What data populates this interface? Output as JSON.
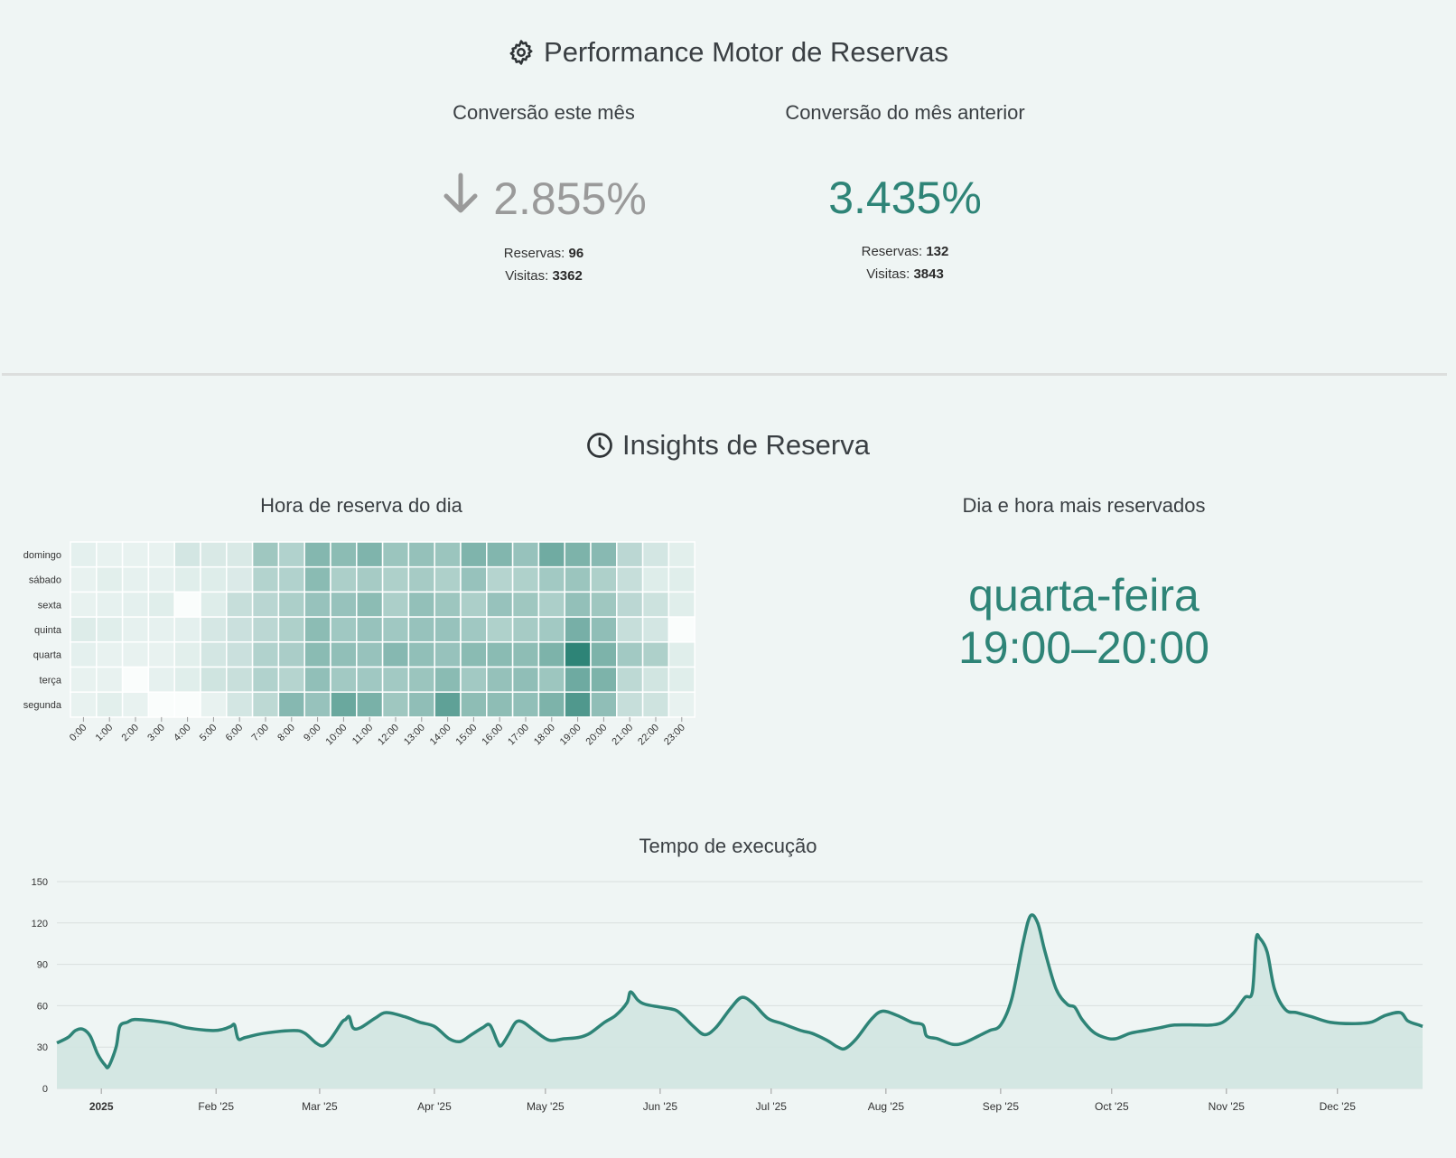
{
  "performance": {
    "title": "Performance Motor de Reservas",
    "icon": "gear-icon",
    "current": {
      "label": "Conversão este mês",
      "value": "2.855%",
      "trend_icon": "arrow-down-icon",
      "reservas_label": "Reservas:",
      "reservas": "96",
      "visitas_label": "Visitas:",
      "visitas": "3362",
      "color": "#9a9a9a"
    },
    "previous": {
      "label": "Conversão do mês anterior",
      "value": "3.435%",
      "reservas_label": "Reservas:",
      "reservas": "132",
      "visitas_label": "Visitas:",
      "visitas": "3843",
      "color": "#2e8477"
    }
  },
  "insights": {
    "title": "Insights de Reserva",
    "icon": "clock-icon",
    "heatmap_title": "Hora de reserva do dia",
    "top_title": "Dia e hora mais reservados",
    "top_day": "quarta-feira",
    "top_hour": "19:00–20:00",
    "runtime_title": "Tempo de execução"
  },
  "colors": {
    "accent": "#2e8477",
    "area_fill": "#d2e6e2",
    "background": "#eff5f4"
  },
  "chart_data": [
    {
      "type": "heatmap",
      "title": "Hora de reserva do dia",
      "rows": [
        "domingo",
        "sábado",
        "sexta",
        "quinta",
        "quarta",
        "terça",
        "segunda"
      ],
      "columns": [
        "0:00",
        "1:00",
        "2:00",
        "3:00",
        "4:00",
        "5:00",
        "6:00",
        "7:00",
        "8:00",
        "9:00",
        "10:00",
        "11:00",
        "12:00",
        "13:00",
        "14:00",
        "15:00",
        "16:00",
        "17:00",
        "18:00",
        "19:00",
        "20:00",
        "21:00",
        "22:00",
        "23:00"
      ],
      "values": [
        [
          3,
          1,
          1,
          1,
          12,
          9,
          9,
          40,
          30,
          54,
          50,
          57,
          42,
          45,
          42,
          57,
          55,
          44,
          65,
          58,
          52,
          25,
          12,
          4
        ],
        [
          1,
          4,
          2,
          2,
          5,
          6,
          8,
          29,
          30,
          51,
          33,
          36,
          32,
          36,
          32,
          44,
          28,
          31,
          38,
          42,
          32,
          19,
          6,
          5
        ],
        [
          1,
          2,
          3,
          5,
          0,
          6,
          19,
          26,
          33,
          44,
          44,
          50,
          33,
          46,
          41,
          33,
          44,
          40,
          33,
          46,
          40,
          25,
          16,
          5
        ],
        [
          7,
          5,
          2,
          2,
          3,
          11,
          17,
          25,
          32,
          50,
          39,
          44,
          39,
          44,
          44,
          39,
          31,
          36,
          38,
          61,
          48,
          19,
          12,
          0
        ],
        [
          3,
          1,
          1,
          1,
          4,
          12,
          17,
          30,
          34,
          51,
          47,
          44,
          53,
          47,
          44,
          51,
          51,
          49,
          58,
          100,
          58,
          38,
          32,
          5
        ],
        [
          1,
          1,
          0,
          2,
          5,
          14,
          18,
          30,
          28,
          47,
          38,
          39,
          38,
          42,
          51,
          38,
          45,
          48,
          41,
          66,
          58,
          24,
          13,
          5
        ],
        [
          1,
          4,
          1,
          0,
          0,
          1,
          12,
          24,
          53,
          44,
          68,
          60,
          40,
          48,
          74,
          49,
          49,
          47,
          58,
          82,
          48,
          19,
          15,
          1
        ]
      ],
      "scale_max": 100
    },
    {
      "type": "area",
      "title": "Tempo de execução",
      "x_ticks": [
        "2025",
        "Feb '25",
        "Mar '25",
        "Apr '25",
        "May '25",
        "Jun '25",
        "Jul '25",
        "Aug '25",
        "Sep '25",
        "Oct '25",
        "Nov '25",
        "Dec '25"
      ],
      "y_ticks": [
        0,
        30,
        60,
        90,
        120,
        150
      ],
      "ylim": [
        0,
        150
      ],
      "xlim": [
        "2024-12-20",
        "2025-12-24"
      ],
      "grid": true,
      "points": [
        [
          "2024-12-20",
          33
        ],
        [
          "2024-12-23",
          37
        ],
        [
          "2024-12-25",
          42
        ],
        [
          "2024-12-27",
          43
        ],
        [
          "2024-12-29",
          38
        ],
        [
          "2024-12-31",
          25
        ],
        [
          "2025-01-02",
          17
        ],
        [
          "2025-01-03",
          16
        ],
        [
          "2025-01-05",
          30
        ],
        [
          "2025-01-06",
          45
        ],
        [
          "2025-01-08",
          48
        ],
        [
          "2025-01-10",
          50
        ],
        [
          "2025-01-15",
          49
        ],
        [
          "2025-01-20",
          47
        ],
        [
          "2025-01-24",
          44
        ],
        [
          "2025-01-31",
          42
        ],
        [
          "2025-02-03",
          43
        ],
        [
          "2025-02-05",
          45
        ],
        [
          "2025-02-06",
          46
        ],
        [
          "2025-02-07",
          36
        ],
        [
          "2025-02-09",
          37
        ],
        [
          "2025-02-14",
          40
        ],
        [
          "2025-02-22",
          42
        ],
        [
          "2025-02-25",
          40
        ],
        [
          "2025-02-28",
          33
        ],
        [
          "2025-03-02",
          31
        ],
        [
          "2025-03-04",
          36
        ],
        [
          "2025-03-07",
          48
        ],
        [
          "2025-03-08",
          50
        ],
        [
          "2025-03-09",
          52
        ],
        [
          "2025-03-10",
          44
        ],
        [
          "2025-03-12",
          44
        ],
        [
          "2025-03-16",
          51
        ],
        [
          "2025-03-19",
          55
        ],
        [
          "2025-03-24",
          52
        ],
        [
          "2025-03-28",
          48
        ],
        [
          "2025-04-01",
          45
        ],
        [
          "2025-04-05",
          36
        ],
        [
          "2025-04-08",
          34
        ],
        [
          "2025-04-11",
          39
        ],
        [
          "2025-04-14",
          44
        ],
        [
          "2025-04-16",
          46
        ],
        [
          "2025-04-18",
          34
        ],
        [
          "2025-04-19",
          31
        ],
        [
          "2025-04-21",
          39
        ],
        [
          "2025-04-23",
          48
        ],
        [
          "2025-04-25",
          48
        ],
        [
          "2025-04-28",
          42
        ],
        [
          "2025-05-02",
          35
        ],
        [
          "2025-05-06",
          36
        ],
        [
          "2025-05-10",
          37
        ],
        [
          "2025-05-13",
          40
        ],
        [
          "2025-05-17",
          48
        ],
        [
          "2025-05-20",
          53
        ],
        [
          "2025-05-23",
          62
        ],
        [
          "2025-05-24",
          70
        ],
        [
          "2025-05-26",
          64
        ],
        [
          "2025-05-28",
          61
        ],
        [
          "2025-06-01",
          59
        ],
        [
          "2025-06-05",
          57
        ],
        [
          "2025-06-07",
          53
        ],
        [
          "2025-06-10",
          45
        ],
        [
          "2025-06-13",
          39
        ],
        [
          "2025-06-16",
          44
        ],
        [
          "2025-06-20",
          58
        ],
        [
          "2025-06-23",
          66
        ],
        [
          "2025-06-26",
          62
        ],
        [
          "2025-06-30",
          51
        ],
        [
          "2025-07-04",
          47
        ],
        [
          "2025-07-09",
          42
        ],
        [
          "2025-07-12",
          40
        ],
        [
          "2025-07-16",
          35
        ],
        [
          "2025-07-19",
          30
        ],
        [
          "2025-07-21",
          29
        ],
        [
          "2025-07-24",
          36
        ],
        [
          "2025-07-28",
          50
        ],
        [
          "2025-07-31",
          56
        ],
        [
          "2025-08-04",
          53
        ],
        [
          "2025-08-08",
          48
        ],
        [
          "2025-08-11",
          46
        ],
        [
          "2025-08-12",
          38
        ],
        [
          "2025-08-15",
          36
        ],
        [
          "2025-08-19",
          32
        ],
        [
          "2025-08-22",
          33
        ],
        [
          "2025-08-26",
          38
        ],
        [
          "2025-08-29",
          42
        ],
        [
          "2025-09-01",
          46
        ],
        [
          "2025-09-04",
          65
        ],
        [
          "2025-09-07",
          105
        ],
        [
          "2025-09-09",
          125
        ],
        [
          "2025-09-11",
          120
        ],
        [
          "2025-09-13",
          99
        ],
        [
          "2025-09-16",
          72
        ],
        [
          "2025-09-19",
          61
        ],
        [
          "2025-09-21",
          59
        ],
        [
          "2025-09-23",
          50
        ],
        [
          "2025-09-26",
          41
        ],
        [
          "2025-09-29",
          37
        ],
        [
          "2025-10-02",
          36
        ],
        [
          "2025-10-06",
          40
        ],
        [
          "2025-10-10",
          42
        ],
        [
          "2025-10-14",
          44
        ],
        [
          "2025-10-18",
          46
        ],
        [
          "2025-10-24",
          46
        ],
        [
          "2025-10-28",
          46
        ],
        [
          "2025-10-31",
          48
        ],
        [
          "2025-11-03",
          55
        ],
        [
          "2025-11-06",
          66
        ],
        [
          "2025-11-08",
          70
        ],
        [
          "2025-11-09",
          108
        ],
        [
          "2025-11-10",
          109
        ],
        [
          "2025-11-12",
          99
        ],
        [
          "2025-11-14",
          72
        ],
        [
          "2025-11-17",
          57
        ],
        [
          "2025-11-20",
          55
        ],
        [
          "2025-11-24",
          52
        ],
        [
          "2025-11-29",
          48
        ],
        [
          "2025-12-05",
          47
        ],
        [
          "2025-12-10",
          48
        ],
        [
          "2025-12-14",
          53
        ],
        [
          "2025-12-18",
          55
        ],
        [
          "2025-12-20",
          49
        ],
        [
          "2025-12-23",
          46
        ],
        [
          "2025-12-24",
          45
        ]
      ]
    }
  ]
}
